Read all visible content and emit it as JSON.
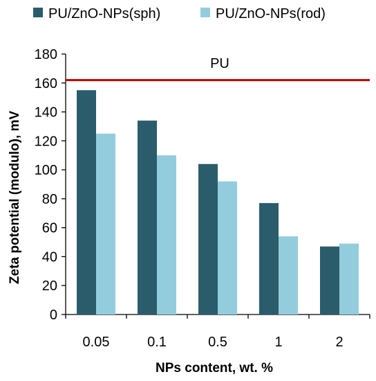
{
  "chart_data": {
    "type": "bar",
    "title": "",
    "xlabel": "NPs content,  wt. %",
    "ylabel": "Zeta potential (modulo), mV",
    "categories": [
      "0.05",
      "0.1",
      "0.5",
      "1",
      "2"
    ],
    "series": [
      {
        "name": "PU/ZnO-NPs(sph)",
        "values": [
          155,
          134,
          104,
          77,
          47
        ],
        "color": "#2b5c6b"
      },
      {
        "name": "PU/ZnO-NPs(rod)",
        "values": [
          125,
          110,
          92,
          54,
          49
        ],
        "color": "#93cddd"
      }
    ],
    "ylim": [
      0,
      180
    ],
    "yticks": [
      0,
      20,
      40,
      60,
      80,
      100,
      120,
      140,
      160,
      180
    ],
    "reference_line": {
      "label": "PU",
      "value": 162,
      "color": "#c00000"
    },
    "grid": false,
    "legend": "top"
  }
}
